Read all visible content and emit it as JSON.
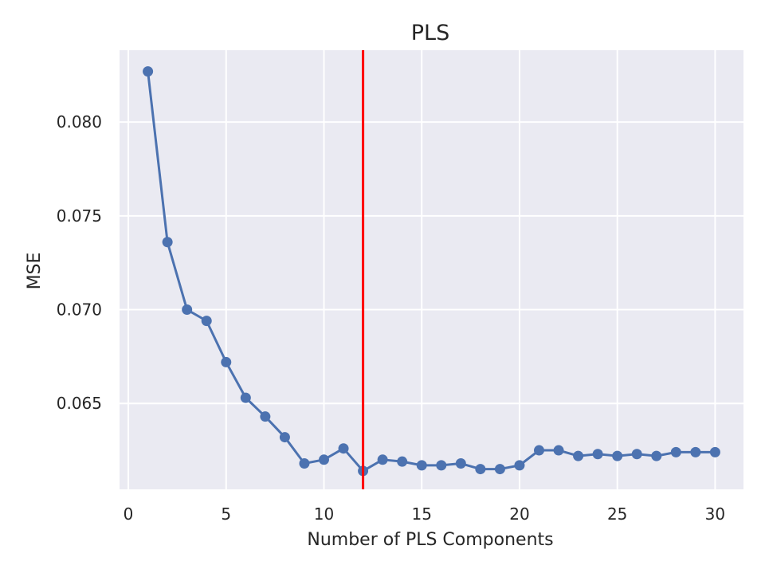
{
  "chart_data": {
    "type": "line",
    "title": "PLS",
    "xlabel": "Number of PLS Components",
    "ylabel": "MSE",
    "xlim": [
      -0.45,
      31.45
    ],
    "ylim": [
      0.06042,
      0.08383
    ],
    "xticks": [
      0,
      5,
      10,
      15,
      20,
      25,
      30
    ],
    "xtick_labels": [
      "0",
      "5",
      "10",
      "15",
      "20",
      "25",
      "30"
    ],
    "yticks": [
      0.065,
      0.07,
      0.075,
      0.08
    ],
    "ytick_labels": [
      "0.065",
      "0.070",
      "0.075",
      "0.080"
    ],
    "grid": true,
    "background": "#eaeaf2",
    "series": [
      {
        "color": "#4c72b0",
        "marker": "circle",
        "x": [
          1,
          2,
          3,
          4,
          5,
          6,
          7,
          8,
          9,
          10,
          11,
          12,
          13,
          14,
          15,
          16,
          17,
          18,
          19,
          20,
          21,
          22,
          23,
          24,
          25,
          26,
          27,
          28,
          29,
          30
        ],
        "y": [
          0.0827,
          0.0736,
          0.07,
          0.0694,
          0.0672,
          0.0653,
          0.0643,
          0.0632,
          0.0618,
          0.062,
          0.0626,
          0.0614,
          0.062,
          0.0619,
          0.0617,
          0.0617,
          0.0618,
          0.0615,
          0.0615,
          0.0617,
          0.0625,
          0.0625,
          0.0622,
          0.0623,
          0.0622,
          0.0623,
          0.0622,
          0.0624,
          0.0624,
          0.0624
        ]
      }
    ],
    "vline": {
      "x": 12,
      "color": "#ff0000"
    }
  }
}
